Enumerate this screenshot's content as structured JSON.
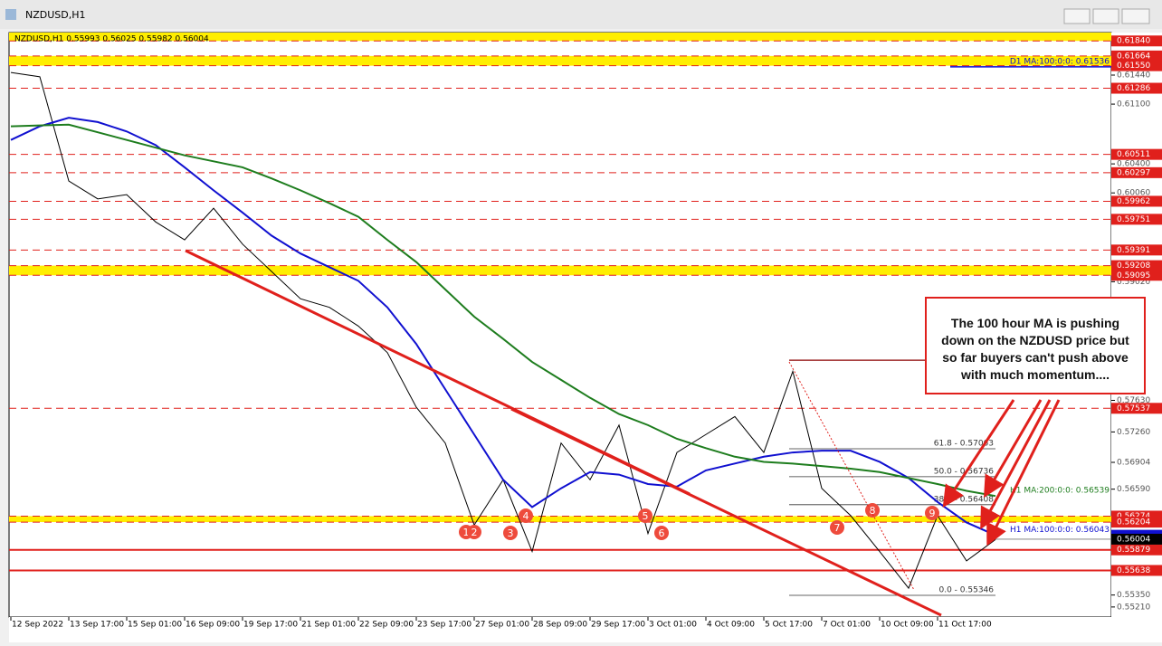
{
  "chart_data": {
    "type": "line",
    "title": "NZDUSD,H1",
    "subtitle": "NZDUSD,H1  0.55993 0.56025 0.55982 0.56004",
    "categories": [
      "12 Sep 2022",
      null,
      "13 Sep 17:00",
      null,
      "15 Sep 01:00",
      null,
      "16 Sep 09:00",
      null,
      "19 Sep 17:00",
      null,
      "21 Sep 01:00",
      null,
      "22 Sep 09:00",
      null,
      "23 Sep 17:00",
      null,
      "27 Sep 01:00",
      null,
      "28 Sep 09:00",
      null,
      "29 Sep 17:00",
      null,
      "3 Oct 01:00",
      null,
      "4 Oct 09:00",
      null,
      "5 Oct 17:00",
      null,
      "7 Oct 01:00",
      null,
      "10 Oct 09:00",
      null,
      "11 Oct 17:00",
      null,
      null
    ],
    "series": [
      {
        "name": "NZDUSD",
        "color": "#000000",
        "values": [
          0.6147,
          0.6142,
          0.602,
          0.5999,
          0.6004,
          0.5972,
          0.5951,
          0.5988,
          0.5946,
          0.5914,
          0.5882,
          0.5872,
          0.585,
          0.5819,
          0.5755,
          0.5713,
          0.5617,
          0.567,
          0.5586,
          0.5713,
          0.567,
          0.5734,
          0.5607,
          0.5702,
          0.5723,
          0.5744,
          0.5702,
          0.5797,
          0.566,
          0.5628,
          0.5586,
          0.5543,
          0.5628,
          0.5575,
          0.56
        ]
      },
      {
        "name": "H1 MA:100:0:0: 0.56043",
        "color": "#1010d0",
        "values": [
          0.6068,
          0.6084,
          0.6094,
          0.6089,
          0.6078,
          0.6062,
          0.6036,
          0.6009,
          0.5983,
          0.5956,
          0.5935,
          0.5919,
          0.5903,
          0.5872,
          0.5829,
          0.5776,
          0.5723,
          0.567,
          0.5638,
          0.566,
          0.5679,
          0.5676,
          0.5665,
          0.5662,
          0.5681,
          0.5689,
          0.5697,
          0.5702,
          0.5704,
          0.5704,
          0.5691,
          0.5672,
          0.5644,
          0.562,
          0.5605
        ]
      },
      {
        "name": "H1 MA:200:0:0: 0.56539",
        "color": "#1e7d1e",
        "values": [
          0.6084,
          0.6085,
          0.6086,
          0.6077,
          0.6068,
          0.6059,
          0.605,
          0.6043,
          0.6036,
          0.6023,
          0.6009,
          0.5994,
          0.5978,
          0.5951,
          0.5925,
          0.5893,
          0.5861,
          0.5835,
          0.5808,
          0.5787,
          0.5766,
          0.5747,
          0.5734,
          0.5718,
          0.5707,
          0.5697,
          0.5691,
          0.5689,
          0.5686,
          0.5683,
          0.5679,
          0.5672,
          0.5665,
          0.5657,
          0.5651
        ]
      }
    ],
    "ylim": [
      0.55092,
      0.61938
    ],
    "yticks": [
      {
        "value": 0.6144,
        "label": "0.61440"
      },
      {
        "value": 0.611,
        "label": "0.61100"
      },
      {
        "value": 0.604,
        "label": "0.60400"
      },
      {
        "value": 0.6006,
        "label": "0.60060"
      },
      {
        "value": 0.5902,
        "label": "0.59020"
      },
      {
        "value": 0.5763,
        "label": "0.57630"
      },
      {
        "value": 0.5726,
        "label": "0.57260"
      },
      {
        "value": 0.56904,
        "label": "0.56904"
      },
      {
        "value": 0.5659,
        "label": "0.56590"
      },
      {
        "value": 0.5535,
        "label": "0.55350"
      },
      {
        "value": 0.5521,
        "label": "0.55210"
      }
    ],
    "levels": [
      {
        "value": 0.6184,
        "label": "0.61840",
        "style": "dashed"
      },
      {
        "value": 0.61664,
        "label": "0.61664",
        "style": "dashed"
      },
      {
        "value": 0.6155,
        "label": "0.61550",
        "style": "dashed"
      },
      {
        "value": 0.61286,
        "label": "0.61286",
        "style": "dashed"
      },
      {
        "value": 0.60511,
        "label": "0.60511",
        "style": "dashed"
      },
      {
        "value": 0.60297,
        "label": "0.60297",
        "style": "dashed"
      },
      {
        "value": 0.59962,
        "label": "0.59962",
        "style": "dashed"
      },
      {
        "value": 0.59751,
        "label": "0.59751",
        "style": "dashed"
      },
      {
        "value": 0.59391,
        "label": "0.59391",
        "style": "dashed"
      },
      {
        "value": 0.59208,
        "label": "0.59208",
        "style": "dashed"
      },
      {
        "value": 0.59095,
        "label": "0.59095",
        "style": "dashed"
      },
      {
        "value": 0.57537,
        "label": "0.57537",
        "style": "dashed"
      },
      {
        "value": 0.56274,
        "label": "0.56274",
        "style": "dashed"
      },
      {
        "value": 0.56204,
        "label": "0.56204",
        "style": "dashed"
      },
      {
        "value": 0.55879,
        "label": "0.55879",
        "style": "solid"
      },
      {
        "value": 0.55638,
        "label": "0.55638",
        "style": "solid"
      }
    ],
    "zones": [
      [
        0.6184,
        0.61938
      ],
      [
        0.6155,
        0.61664
      ],
      [
        0.59095,
        0.59208
      ],
      [
        0.56204,
        0.56274
      ]
    ],
    "current": {
      "value": 0.56004,
      "label": "0.56004"
    },
    "d1_ma": {
      "value": 0.61536,
      "label": "D1 MA:100:0:0: 0.61536"
    },
    "fib": [
      {
        "value": 0.581
      },
      {
        "value": 0.57063,
        "label": "61.8 - 0.57063"
      },
      {
        "value": 0.56736,
        "label": "50.0 - 0.56736"
      },
      {
        "value": 0.56408,
        "label": "38.2 - 0.56408"
      },
      {
        "value": 0.55346,
        "label": "0.0 - 0.55346"
      }
    ],
    "wave_labels": [
      "1",
      "2",
      "3",
      "4",
      "5",
      "6",
      "7",
      "8",
      "9"
    ],
    "annotation": "The 100 hour MA is pushing down on the NZDUSD price but so far buyers can't push above with much momentum...."
  }
}
